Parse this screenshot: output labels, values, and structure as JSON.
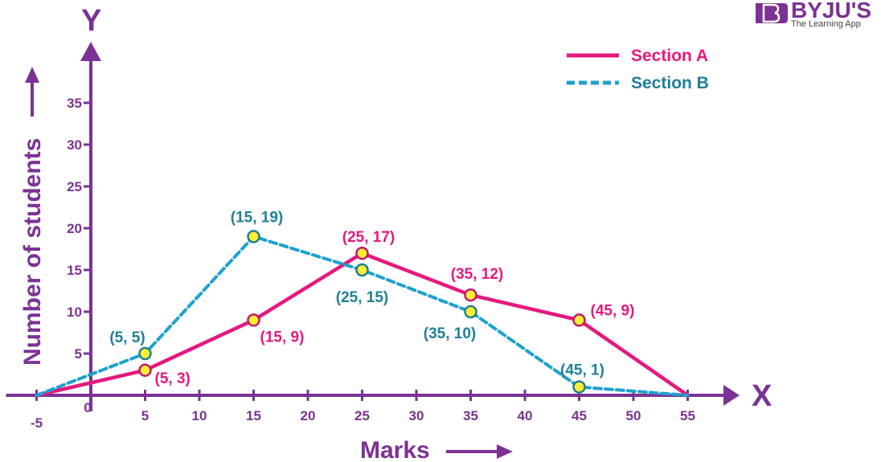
{
  "colors": {
    "axis": "#7b3294",
    "section_a": "#e5197e",
    "section_b": "#1ea2cf",
    "marker_fill": "#ffee33",
    "marker_stroke_a": "#c0186d",
    "marker_stroke_b": "#1f7f8f",
    "label_b": "#1f7f99",
    "logo": "#7b3294"
  },
  "logo": {
    "brand": "BYJU'S",
    "tagline": "The Learning App"
  },
  "chart_data": {
    "type": "line",
    "x_axis_letter": "X",
    "y_axis_letter": "Y",
    "xlabel": "Marks",
    "ylabel": "Number of students",
    "xlim": [
      -5,
      55
    ],
    "ylim": [
      0,
      35
    ],
    "x_ticks": [
      -5,
      0,
      5,
      10,
      15,
      20,
      25,
      30,
      35,
      40,
      45,
      50,
      55
    ],
    "y_ticks": [
      5,
      10,
      15,
      20,
      25,
      30,
      35
    ],
    "legend_position": "top-right",
    "series": [
      {
        "name": "Section A",
        "style": "solid",
        "x": [
          -5,
          5,
          15,
          25,
          35,
          45,
          55
        ],
        "y": [
          0,
          3,
          9,
          17,
          12,
          9,
          0
        ],
        "labeled_points": [
          {
            "x": 5,
            "y": 3,
            "label": "(5, 3)"
          },
          {
            "x": 15,
            "y": 9,
            "label": "(15, 9)"
          },
          {
            "x": 25,
            "y": 17,
            "label": "(25, 17)"
          },
          {
            "x": 35,
            "y": 12,
            "label": "(35, 12)"
          },
          {
            "x": 45,
            "y": 9,
            "label": "(45, 9)"
          }
        ]
      },
      {
        "name": "Section B",
        "style": "dashed",
        "x": [
          -5,
          5,
          15,
          25,
          35,
          45,
          55
        ],
        "y": [
          0,
          5,
          19,
          15,
          10,
          1,
          0
        ],
        "labeled_points": [
          {
            "x": 5,
            "y": 5,
            "label": "(5, 5)"
          },
          {
            "x": 15,
            "y": 19,
            "label": "(15, 19)"
          },
          {
            "x": 25,
            "y": 15,
            "label": "(25, 15)"
          },
          {
            "x": 35,
            "y": 10,
            "label": "(35, 10)"
          },
          {
            "x": 45,
            "y": 1,
            "label": "(45, 1)"
          }
        ]
      }
    ]
  }
}
